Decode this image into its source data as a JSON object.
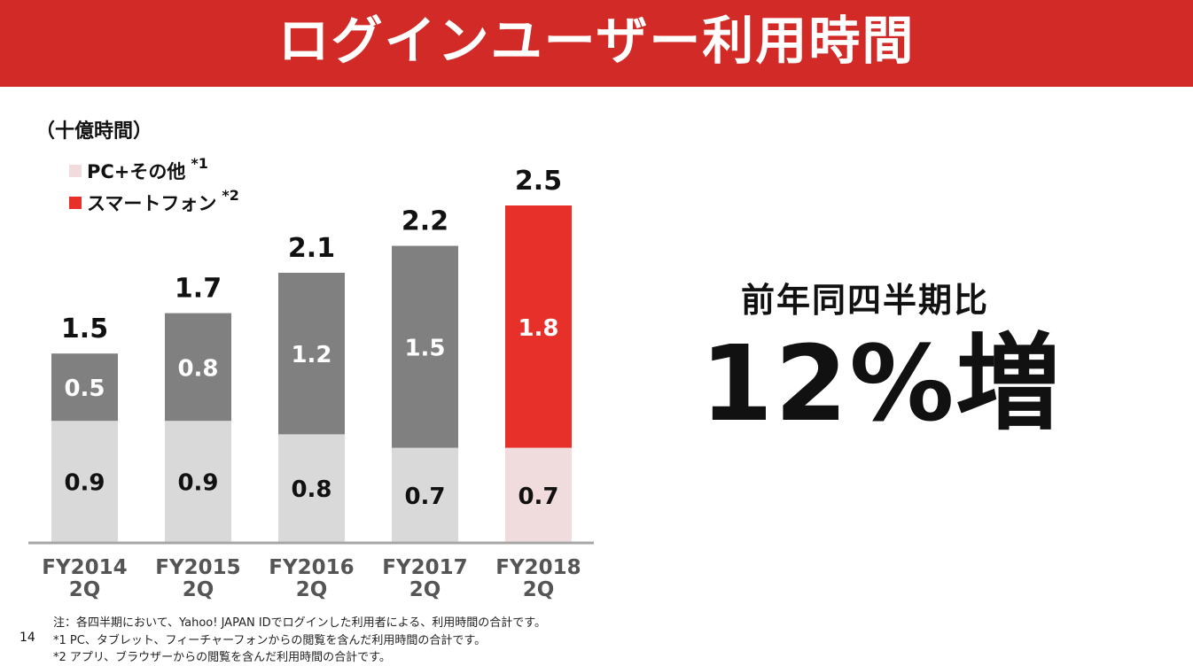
{
  "title": "ログインユーザー利用時間",
  "unit_label": "（十億時間）",
  "legend": [
    {
      "label": "PC+その他",
      "note": "*1",
      "color": "#f0dcdc"
    },
    {
      "label": "スマートフォン",
      "note": "*2",
      "color": "#e8302a"
    }
  ],
  "headline": {
    "label": "前年同四半期比",
    "value": "12%増"
  },
  "chart_data": {
    "type": "bar",
    "stacked": true,
    "categories": [
      "FY2014 2Q",
      "FY2015 2Q",
      "FY2016 2Q",
      "FY2017 2Q",
      "FY2018 2Q"
    ],
    "series": [
      {
        "name": "PC+その他",
        "values": [
          0.9,
          0.9,
          0.8,
          0.7,
          0.7
        ],
        "labels": [
          "0.9",
          "0.9",
          "0.8",
          "0.7",
          "0.7"
        ]
      },
      {
        "name": "スマートフォン",
        "values": [
          0.5,
          0.8,
          1.2,
          1.5,
          1.8
        ],
        "labels": [
          "0.5",
          "0.8",
          "1.2",
          "1.5",
          "1.8"
        ]
      }
    ],
    "totals": [
      "1.5",
      "1.7",
      "2.1",
      "2.2",
      "2.5"
    ],
    "ylabel": "（十億時間）",
    "ylim": [
      0,
      2.5
    ],
    "colors": {
      "pc_other": "#d9d9d9",
      "smartphone": "#808080",
      "pc_other_highlight": "#f0dcdc",
      "smartphone_highlight": "#e8302a",
      "axis": "#a6a6a6"
    }
  },
  "notes": [
    "注：各四半期において、Yahoo! JAPAN IDでログインした利用者による、利用時間の合計です。",
    "*1 PC、タブレット、フィーチャーフォンからの閲覧を含んだ利用時間の合計です。",
    "*2 アプリ、ブラウザーからの閲覧を含んだ利用時間の合計です。"
  ],
  "page_number": "14"
}
